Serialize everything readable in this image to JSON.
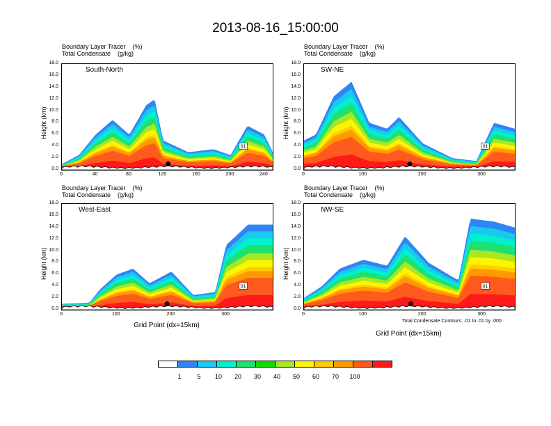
{
  "title": "2013-08-16_15:00:00",
  "panel_header_line1": "Boundary Layer Tracer    (%)",
  "panel_header_line2": "Total Condensate    (g/kg)",
  "y_axis_label": "Height (km)",
  "x_axis_label": "Grid Point (dx=15km)",
  "contour_note": "Total Condensate Contours: .01 to .01 by .000",
  "contour_label": "01",
  "colorbar": {
    "colors": [
      "#ffffff",
      "#2e86f5",
      "#1ac8f0",
      "#00f0d0",
      "#20e070",
      "#14d800",
      "#a8e822",
      "#fff400",
      "#ffcc00",
      "#ff9900",
      "#ff5a1e",
      "#ff1a1a"
    ],
    "labels": [
      "1",
      "5",
      "10",
      "20",
      "30",
      "40",
      "50",
      "60",
      "70",
      "100"
    ]
  },
  "chart_data": [
    {
      "type": "heatmap",
      "name": "South-North",
      "xlim": [
        0,
        250
      ],
      "ylim": [
        0,
        18
      ],
      "xticks": [
        "0",
        "40",
        "80",
        "120",
        "160",
        "200",
        "240"
      ],
      "yticks": [
        "0.0",
        "2.0",
        "4.0",
        "6.0",
        "8.0",
        "10.0",
        "12.0",
        "14.0",
        "16.0",
        "18.0"
      ],
      "marker_x": 126,
      "tracer_top_km": [
        {
          "x": 0,
          "y": 1.0
        },
        {
          "x": 20,
          "y": 2.5
        },
        {
          "x": 40,
          "y": 6.0
        },
        {
          "x": 60,
          "y": 8.5
        },
        {
          "x": 80,
          "y": 6.0
        },
        {
          "x": 100,
          "y": 11.0
        },
        {
          "x": 110,
          "y": 12.0
        },
        {
          "x": 120,
          "y": 5.0
        },
        {
          "x": 150,
          "y": 3.0
        },
        {
          "x": 180,
          "y": 3.5
        },
        {
          "x": 200,
          "y": 2.5
        },
        {
          "x": 220,
          "y": 7.5
        },
        {
          "x": 240,
          "y": 6.0
        },
        {
          "x": 250,
          "y": 3.0
        }
      ]
    },
    {
      "type": "heatmap",
      "name": "SW-NE",
      "xlim": [
        0,
        355
      ],
      "ylim": [
        0,
        18
      ],
      "xticks": [
        "0",
        "100",
        "200",
        "300"
      ],
      "yticks": [
        "0.0",
        "2.0",
        "4.0",
        "6.0",
        "8.0",
        "10.0",
        "12.0",
        "14.0",
        "16.0",
        "18.0"
      ],
      "marker_x": 178,
      "tracer_top_km": [
        {
          "x": 0,
          "y": 5.0
        },
        {
          "x": 20,
          "y": 6.0
        },
        {
          "x": 50,
          "y": 12.5
        },
        {
          "x": 80,
          "y": 15.0
        },
        {
          "x": 110,
          "y": 8.0
        },
        {
          "x": 140,
          "y": 7.0
        },
        {
          "x": 160,
          "y": 9.0
        },
        {
          "x": 200,
          "y": 4.5
        },
        {
          "x": 250,
          "y": 2.0
        },
        {
          "x": 290,
          "y": 1.5
        },
        {
          "x": 320,
          "y": 8.0
        },
        {
          "x": 355,
          "y": 7.0
        }
      ]
    },
    {
      "type": "heatmap",
      "name": "West-East",
      "xlim": [
        0,
        385
      ],
      "ylim": [
        0,
        18
      ],
      "xticks": [
        "0",
        "100",
        "200",
        "300"
      ],
      "yticks": [
        "0.0",
        "2.0",
        "4.0",
        "6.0",
        "8.0",
        "10.0",
        "12.0",
        "14.0",
        "16.0",
        "18.0"
      ],
      "marker_x": 192,
      "tracer_top_km": [
        {
          "x": 0,
          "y": 1.0
        },
        {
          "x": 50,
          "y": 1.2
        },
        {
          "x": 70,
          "y": 3.5
        },
        {
          "x": 100,
          "y": 6.0
        },
        {
          "x": 130,
          "y": 7.0
        },
        {
          "x": 160,
          "y": 4.5
        },
        {
          "x": 200,
          "y": 6.5
        },
        {
          "x": 240,
          "y": 2.5
        },
        {
          "x": 280,
          "y": 3.0
        },
        {
          "x": 300,
          "y": 11.0
        },
        {
          "x": 340,
          "y": 14.5
        },
        {
          "x": 385,
          "y": 14.5
        }
      ]
    },
    {
      "type": "heatmap",
      "name": "NW-SE",
      "xlim": [
        0,
        355
      ],
      "ylim": [
        0,
        18
      ],
      "xticks": [
        "0",
        "100",
        "200",
        "300"
      ],
      "yticks": [
        "0.0",
        "2.0",
        "4.0",
        "6.0",
        "8.0",
        "10.0",
        "12.0",
        "14.0",
        "16.0",
        "18.0"
      ],
      "marker_x": 180,
      "tracer_top_km": [
        {
          "x": 0,
          "y": 2.0
        },
        {
          "x": 30,
          "y": 4.0
        },
        {
          "x": 60,
          "y": 7.0
        },
        {
          "x": 100,
          "y": 8.5
        },
        {
          "x": 140,
          "y": 7.5
        },
        {
          "x": 170,
          "y": 12.5
        },
        {
          "x": 210,
          "y": 8.0
        },
        {
          "x": 260,
          "y": 5.0
        },
        {
          "x": 280,
          "y": 15.5
        },
        {
          "x": 320,
          "y": 15.0
        },
        {
          "x": 355,
          "y": 14.0
        }
      ]
    }
  ]
}
